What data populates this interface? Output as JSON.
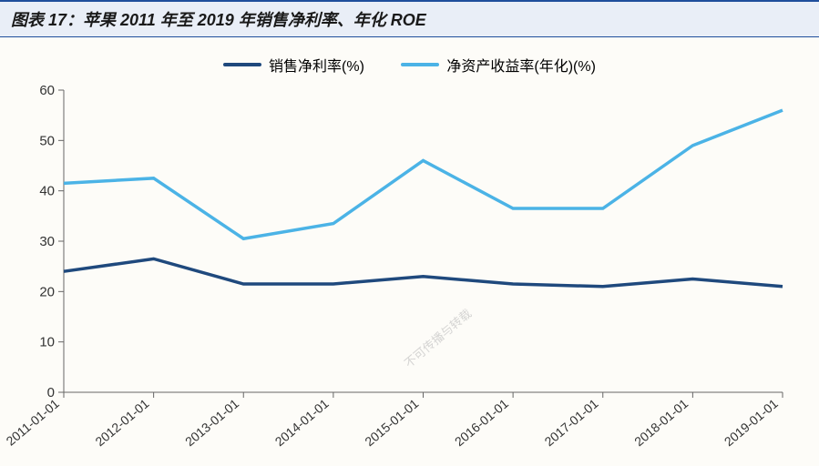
{
  "header": {
    "title": "图表 17：苹果 2011 年至 2019 年销售净利率、年化 ROE"
  },
  "chart": {
    "type": "line",
    "background_color": "#fdfcf8",
    "axis_color": "#666666",
    "label_color": "#333333",
    "label_fontsize": 15,
    "x_labels": [
      "2011-01-01",
      "2012-01-01",
      "2013-01-01",
      "2014-01-01",
      "2015-01-01",
      "2016-01-01",
      "2017-01-01",
      "2018-01-01",
      "2019-01-01"
    ],
    "ylim": [
      0,
      60
    ],
    "ytick_step": 10,
    "y_ticks": [
      0,
      10,
      20,
      30,
      40,
      50,
      60
    ],
    "line_width": 3.5,
    "legend": {
      "position": "top-center",
      "items": [
        {
          "label": "销售净利率(%)",
          "color": "#1f497d"
        },
        {
          "label": "净资产收益率(年化)(%)",
          "color": "#4bb3e6"
        }
      ]
    },
    "series": [
      {
        "name": "销售净利率(%)",
        "color": "#1f497d",
        "values": [
          24,
          26.5,
          21.5,
          21.5,
          23,
          21.5,
          21,
          22.5,
          21
        ]
      },
      {
        "name": "净资产收益率(年化)(%)",
        "color": "#4bb3e6",
        "values": [
          41.5,
          42.5,
          30.5,
          33.5,
          46,
          36.5,
          36.5,
          49,
          56
        ]
      }
    ],
    "watermark": "不可传播与转载"
  }
}
